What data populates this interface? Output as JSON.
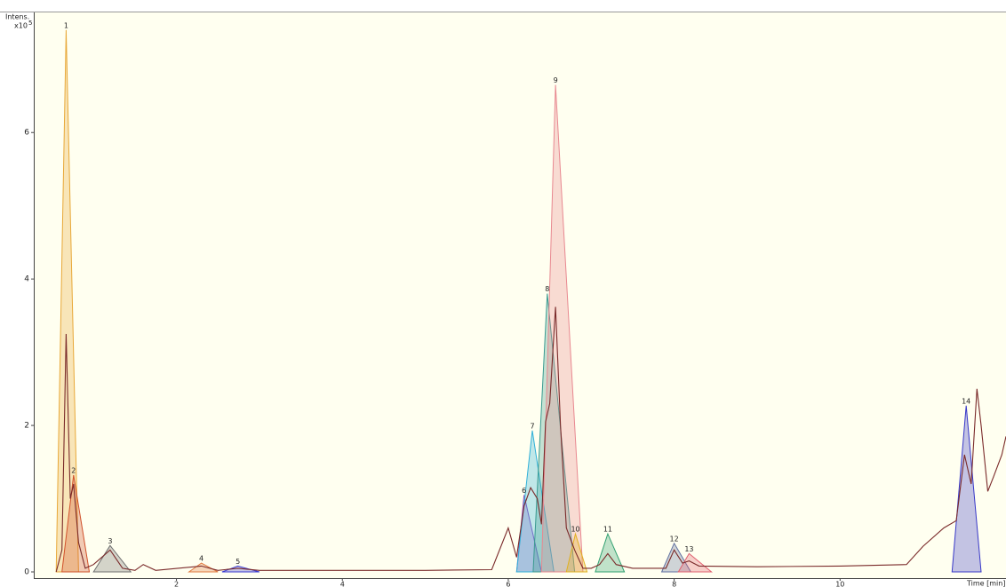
{
  "chart_data": {
    "type": "chromatogram",
    "y_label": "Intens.",
    "y_scale": "x10",
    "y_scale_exp": "5",
    "x_label": "Time [min]",
    "xlim": [
      0.28,
      12
    ],
    "ylim": [
      -0.085,
      7.64
    ],
    "xticks": [
      2,
      4,
      6,
      8,
      10
    ],
    "yticks": [
      0,
      2,
      4,
      6
    ],
    "peaks": [
      {
        "name": "1",
        "color": "#e8a838",
        "x": [
          0.55,
          0.67,
          0.82
        ],
        "values": [
          0,
          7.4,
          0
        ]
      },
      {
        "name": "2",
        "color": "#d0502a",
        "x": [
          0.62,
          0.76,
          0.95
        ],
        "values": [
          0,
          1.32,
          0
        ]
      },
      {
        "name": "3",
        "color": "#707070",
        "x": [
          1.0,
          1.2,
          1.45
        ],
        "values": [
          0,
          0.36,
          0
        ]
      },
      {
        "name": "4",
        "color": "#e07a40",
        "x": [
          2.15,
          2.3,
          2.5
        ],
        "values": [
          0,
          0.12,
          0
        ]
      },
      {
        "name": "5",
        "color": "#3a3ad0",
        "x": [
          2.55,
          2.74,
          3.0
        ],
        "values": [
          0,
          0.08,
          0
        ]
      },
      {
        "name": "6",
        "color": "#9050c0",
        "x": [
          6.1,
          6.19,
          6.4
        ],
        "values": [
          0,
          1.05,
          0
        ]
      },
      {
        "name": "7",
        "color": "#30b0d8",
        "x": [
          6.1,
          6.29,
          6.55
        ],
        "values": [
          0,
          1.93,
          0
        ]
      },
      {
        "name": "8",
        "color": "#3a9a90",
        "x": [
          6.3,
          6.47,
          6.8
        ],
        "values": [
          0,
          3.8,
          0
        ]
      },
      {
        "name": "9",
        "color": "#e88890",
        "x": [
          6.4,
          6.57,
          6.9
        ],
        "values": [
          0,
          6.65,
          0
        ]
      },
      {
        "name": "10",
        "color": "#e0b020",
        "x": [
          6.7,
          6.81,
          6.95
        ],
        "values": [
          0,
          0.52,
          0
        ]
      },
      {
        "name": "11",
        "color": "#30a070",
        "x": [
          7.05,
          7.2,
          7.4
        ],
        "values": [
          0,
          0.52,
          0
        ]
      },
      {
        "name": "12",
        "color": "#6070a0",
        "x": [
          7.85,
          8.0,
          8.2
        ],
        "values": [
          0,
          0.39,
          0
        ]
      },
      {
        "name": "13",
        "color": "#e06070",
        "x": [
          8.05,
          8.18,
          8.45
        ],
        "values": [
          0,
          0.25,
          0
        ]
      },
      {
        "name": "14",
        "color": "#3838c8",
        "x": [
          11.35,
          11.52,
          11.7
        ],
        "values": [
          0,
          2.27,
          0
        ]
      }
    ],
    "trace": {
      "color": "#7a2a2a",
      "x": [
        0.55,
        0.62,
        0.67,
        0.72,
        0.76,
        0.82,
        0.9,
        1.0,
        1.2,
        1.35,
        1.5,
        1.6,
        1.75,
        2.3,
        2.5,
        2.74,
        3.0,
        5.0,
        5.8,
        6.0,
        6.1,
        6.19,
        6.27,
        6.35,
        6.4,
        6.45,
        6.5,
        6.57,
        6.63,
        6.7,
        6.8,
        6.9,
        7.0,
        7.1,
        7.2,
        7.3,
        7.5,
        7.9,
        8.0,
        8.1,
        8.18,
        8.3,
        9.0,
        10.0,
        10.8,
        11.0,
        11.25,
        11.4,
        11.5,
        11.58,
        11.65,
        11.7,
        11.78,
        11.85,
        11.95,
        12.0
      ],
      "values": [
        0,
        0.3,
        3.25,
        1.0,
        1.2,
        0.4,
        0.05,
        0.1,
        0.3,
        0.05,
        0.02,
        0.1,
        0.02,
        0.08,
        0.02,
        0.05,
        0.02,
        0.02,
        0.03,
        0.6,
        0.2,
        0.9,
        1.15,
        1.0,
        0.65,
        2.05,
        2.3,
        3.62,
        2.0,
        0.6,
        0.3,
        0.05,
        0.05,
        0.1,
        0.25,
        0.1,
        0.05,
        0.05,
        0.3,
        0.12,
        0.15,
        0.08,
        0.07,
        0.08,
        0.1,
        0.35,
        0.6,
        0.7,
        1.6,
        1.2,
        2.5,
        2.0,
        1.1,
        1.3,
        1.6,
        1.85
      ]
    }
  }
}
